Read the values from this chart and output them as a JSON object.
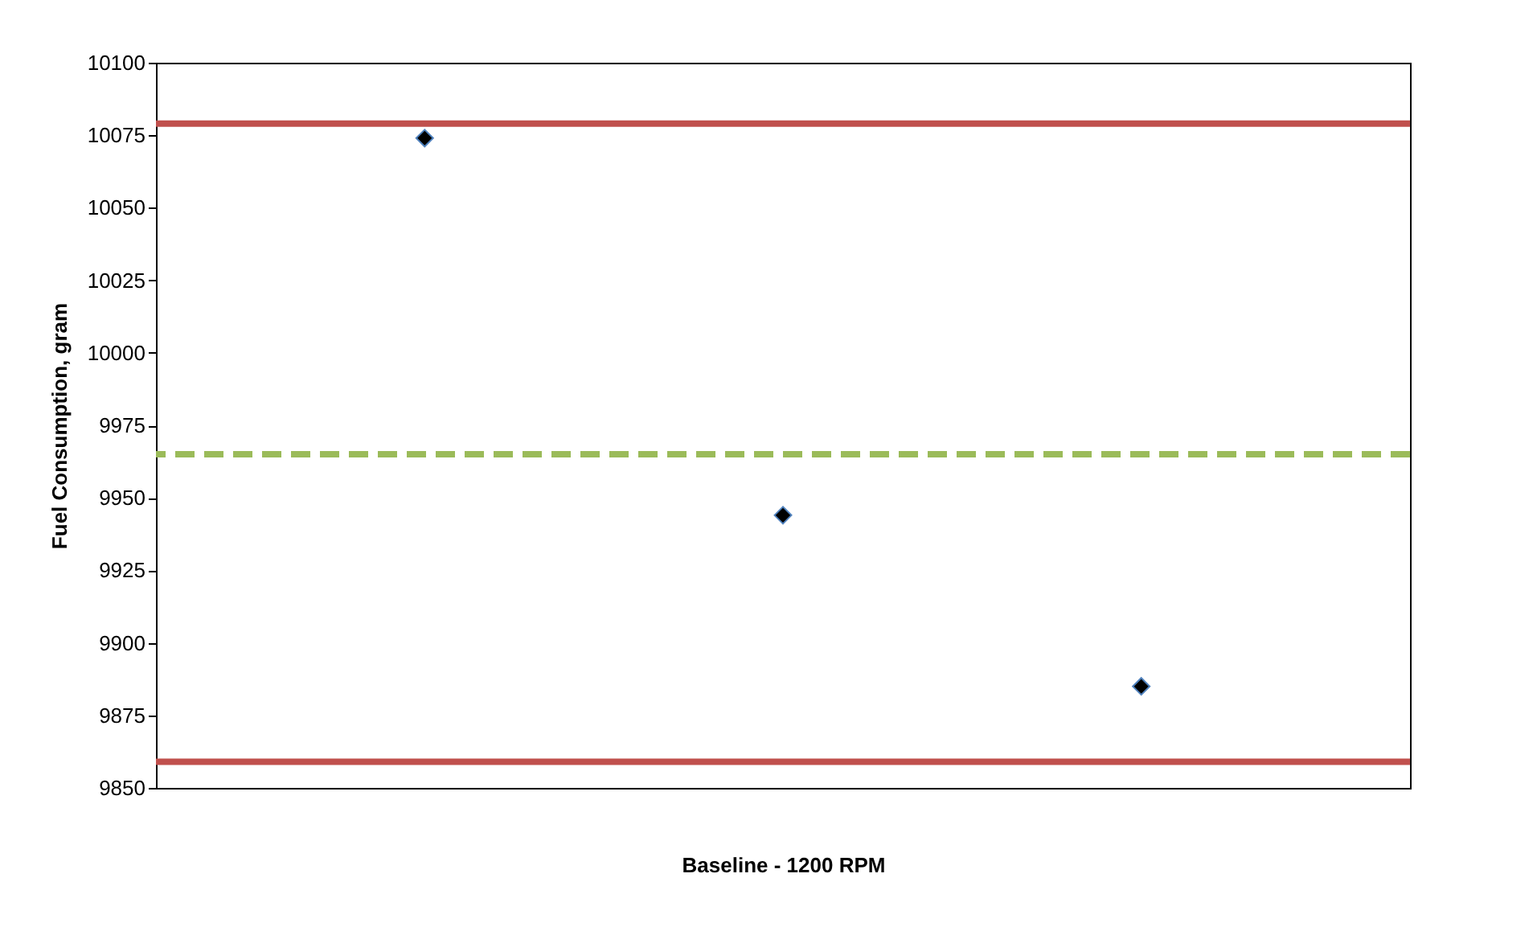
{
  "chart_data": {
    "type": "scatter",
    "xlabel": "Baseline - 1200 RPM",
    "ylabel": "Fuel Consumption, gram",
    "categories": [
      null,
      null,
      null
    ],
    "series": [
      {
        "color": "#000000",
        "values": [
          10074,
          9944,
          9885
        ]
      }
    ],
    "marker": "diamond",
    "ylim": [
      9850,
      10100
    ],
    "yticks": [
      9850,
      9875,
      9900,
      9925,
      9950,
      9975,
      10000,
      10025,
      10050,
      10075,
      10100
    ],
    "grid": false,
    "ref_lines": [
      {
        "axis": "y",
        "value": 10079,
        "color": "#c0504d",
        "line_style": "solid"
      },
      {
        "axis": "y",
        "value": 9859,
        "color": "#c0504d",
        "line_style": "solid"
      },
      {
        "axis": "y",
        "value": 9965,
        "color": "#9bbb59",
        "line_style": "dashed"
      }
    ]
  }
}
